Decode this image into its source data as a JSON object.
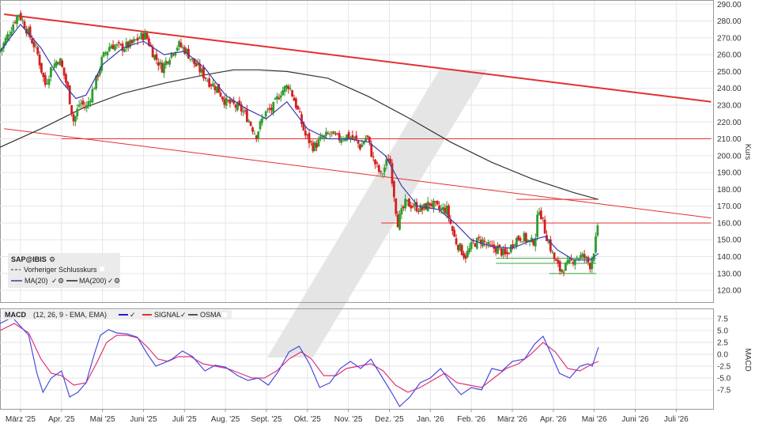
{
  "price_panel": {
    "y_axis_label": "Kurs",
    "legend": {
      "symbol": "SAP@IBIS",
      "prev_close_label": "Vorheriger Schlusskurs",
      "ma20_label": "MA(20)",
      "ma200_label": "MA(200)"
    }
  },
  "macd_panel": {
    "y_axis_label": "MACD",
    "legend": {
      "title": "MACD",
      "params": "(12, 26, 9 - EMA, EMA)",
      "signal_label": "SIGNAL",
      "osma_label": "OSMA"
    }
  },
  "colors": {
    "candle_up": "#2e9e2e",
    "candle_down": "#d42020",
    "ma20": "#3a3ab0",
    "ma200": "#333333",
    "trend_red": "#e23030",
    "support_green": "#3aa53a",
    "macd": "#4a4ae0",
    "signal": "#e0307a",
    "grid": "#e6e6e6",
    "watermark": "#e4e4e4"
  },
  "chart_data": [
    {
      "type": "candlestick",
      "title": "",
      "ylabel": "Kurs",
      "ylim": [
        113,
        292
      ],
      "y_ticks": [
        "120.00",
        "130.00",
        "140.00",
        "150.00",
        "160.00",
        "170.00",
        "180.00",
        "190.00",
        "200.00",
        "210.00",
        "220.00",
        "230.00",
        "240.00",
        "250.00",
        "260.00",
        "270.00",
        "280.00",
        "290.00"
      ],
      "y_tick_values": [
        120,
        130,
        140,
        150,
        160,
        170,
        180,
        190,
        200,
        210,
        220,
        230,
        240,
        250,
        260,
        270,
        280,
        290
      ],
      "x_ticks": [
        "März '25",
        "Apr. '25",
        "Mai '25",
        "Juni '25",
        "Juli '25",
        "Aug. '25",
        "Sept. '25",
        "Okt. '25",
        "Nov. '25",
        "Dez. '25",
        "Jan. '26",
        "Feb. '26",
        "März '26",
        "Apr. '26",
        "Mai '26",
        "Juni '26",
        "Juli '26"
      ],
      "x_tick_months": [
        2,
        3,
        4,
        5,
        6,
        7,
        8,
        9,
        10,
        11,
        12,
        13,
        14,
        15,
        16,
        17,
        18
      ],
      "x_range_months": [
        1.5,
        18.9
      ],
      "grid": true,
      "close_anchors": [
        [
          1.5,
          262
        ],
        [
          1.7,
          272
        ],
        [
          1.95,
          285
        ],
        [
          2.15,
          275
        ],
        [
          2.4,
          262
        ],
        [
          2.6,
          242
        ],
        [
          2.75,
          252
        ],
        [
          2.95,
          258
        ],
        [
          3.15,
          240
        ],
        [
          3.3,
          220
        ],
        [
          3.45,
          232
        ],
        [
          3.6,
          228
        ],
        [
          3.85,
          245
        ],
        [
          4.0,
          258
        ],
        [
          4.2,
          266
        ],
        [
          4.45,
          264
        ],
        [
          4.7,
          266
        ],
        [
          4.9,
          270
        ],
        [
          5.05,
          272
        ],
        [
          5.25,
          260
        ],
        [
          5.45,
          252
        ],
        [
          5.65,
          260
        ],
        [
          5.85,
          266
        ],
        [
          6.05,
          262
        ],
        [
          6.2,
          256
        ],
        [
          6.4,
          250
        ],
        [
          6.6,
          244
        ],
        [
          6.8,
          240
        ],
        [
          7.0,
          232
        ],
        [
          7.2,
          230
        ],
        [
          7.4,
          227
        ],
        [
          7.55,
          222
        ],
        [
          7.75,
          212
        ],
        [
          7.95,
          225
        ],
        [
          8.15,
          228
        ],
        [
          8.35,
          238
        ],
        [
          8.55,
          242
        ],
        [
          8.75,
          228
        ],
        [
          8.95,
          212
        ],
        [
          9.15,
          205
        ],
        [
          9.35,
          210
        ],
        [
          9.55,
          213
        ],
        [
          9.75,
          210
        ],
        [
          9.95,
          212
        ],
        [
          10.15,
          210
        ],
        [
          10.3,
          205
        ],
        [
          10.45,
          212
        ],
        [
          10.6,
          198
        ],
        [
          10.8,
          188
        ],
        [
          11.0,
          200
        ],
        [
          11.2,
          160
        ],
        [
          11.4,
          172
        ],
        [
          11.6,
          170
        ],
        [
          11.8,
          168
        ],
        [
          12.0,
          172
        ],
        [
          12.2,
          168
        ],
        [
          12.4,
          168
        ],
        [
          12.6,
          150
        ],
        [
          12.85,
          140
        ],
        [
          13.05,
          148
        ],
        [
          13.25,
          150
        ],
        [
          13.45,
          145
        ],
        [
          13.65,
          145
        ],
        [
          13.85,
          140
        ],
        [
          14.05,
          150
        ],
        [
          14.25,
          152
        ],
        [
          14.45,
          148
        ],
        [
          14.55,
          150
        ],
        [
          14.65,
          170
        ],
        [
          14.8,
          155
        ],
        [
          15.0,
          140
        ],
        [
          15.15,
          132
        ],
        [
          15.35,
          135
        ],
        [
          15.55,
          140
        ],
        [
          15.75,
          140
        ],
        [
          15.9,
          135
        ],
        [
          16.0,
          145
        ],
        [
          16.1,
          158
        ]
      ],
      "series": [
        {
          "name": "MA(20)",
          "values": [
            [
              1.5,
              262
            ],
            [
              2.0,
              278
            ],
            [
              2.5,
              264
            ],
            [
              3.0,
              244
            ],
            [
              3.35,
              234
            ],
            [
              3.6,
              236
            ],
            [
              4.0,
              254
            ],
            [
              4.5,
              264
            ],
            [
              5.0,
              268
            ],
            [
              5.5,
              260
            ],
            [
              6.0,
              262
            ],
            [
              6.5,
              252
            ],
            [
              7.0,
              236
            ],
            [
              7.5,
              228
            ],
            [
              8.0,
              222
            ],
            [
              8.5,
              232
            ],
            [
              9.0,
              216
            ],
            [
              9.5,
              210
            ],
            [
              10.0,
              210
            ],
            [
              10.5,
              208
            ],
            [
              10.9,
              200
            ],
            [
              11.3,
              182
            ],
            [
              11.7,
              170
            ],
            [
              12.2,
              168
            ],
            [
              12.6,
              160
            ],
            [
              13.0,
              150
            ],
            [
              13.5,
              146
            ],
            [
              14.0,
              145
            ],
            [
              14.5,
              150
            ],
            [
              14.8,
              152
            ],
            [
              15.1,
              144
            ],
            [
              15.5,
              138
            ],
            [
              15.9,
              138
            ],
            [
              16.1,
              142
            ]
          ]
        },
        {
          "name": "MA(200)",
          "values": [
            [
              1.5,
              205
            ],
            [
              2.5,
              216
            ],
            [
              3.5,
              228
            ],
            [
              4.5,
              237
            ],
            [
              5.5,
              243
            ],
            [
              6.5,
              248
            ],
            [
              7.2,
              251
            ],
            [
              7.8,
              251
            ],
            [
              8.5,
              250
            ],
            [
              9.5,
              246
            ],
            [
              10.5,
              235
            ],
            [
              11.5,
              222
            ],
            [
              12.5,
              208
            ],
            [
              13.5,
              196
            ],
            [
              14.5,
              186
            ],
            [
              15.5,
              178
            ],
            [
              16.1,
              174
            ]
          ]
        }
      ],
      "trend_lines": [
        {
          "from": [
            1.6,
            284
          ],
          "to": [
            18.85,
            232
          ],
          "color": "trend_red",
          "width": 2
        },
        {
          "from": [
            1.6,
            216
          ],
          "to": [
            18.85,
            163
          ],
          "color": "trend_red",
          "width": 1
        },
        {
          "from": [
            3.0,
            210
          ],
          "to": [
            18.85,
            210
          ],
          "color": "trend_red",
          "width": 1
        },
        {
          "from": [
            10.8,
            160
          ],
          "to": [
            18.85,
            160
          ],
          "color": "trend_red",
          "width": 1
        },
        {
          "from": [
            14.1,
            174
          ],
          "to": [
            16.05,
            174
          ],
          "color": "trend_red",
          "width": 1
        },
        {
          "from": [
            13.6,
            136
          ],
          "to": [
            16.05,
            136
          ],
          "color": "support_green",
          "width": 1
        },
        {
          "from": [
            13.6,
            139
          ],
          "to": [
            16.05,
            139
          ],
          "color": "support_green",
          "width": 1
        },
        {
          "from": [
            14.9,
            130
          ],
          "to": [
            16.05,
            130
          ],
          "color": "support_green",
          "width": 1
        }
      ]
    },
    {
      "type": "line",
      "title": "",
      "ylabel": "MACD",
      "ylim": [
        -11.5,
        9.5
      ],
      "y_ticks": [
        "7.5",
        "5.0",
        "2.5",
        "0.0",
        "-2.5",
        "-5.0",
        "-7.5"
      ],
      "y_tick_values": [
        7.5,
        5.0,
        2.5,
        0.0,
        -2.5,
        -5.0,
        -7.5
      ],
      "grid": true,
      "series": [
        {
          "name": "MACD",
          "values": [
            [
              1.5,
              6.5
            ],
            [
              1.8,
              7.8
            ],
            [
              2.2,
              4
            ],
            [
              2.4,
              -4
            ],
            [
              2.55,
              -8
            ],
            [
              2.75,
              -5
            ],
            [
              3.0,
              -3.5
            ],
            [
              3.2,
              -9
            ],
            [
              3.4,
              -8
            ],
            [
              3.6,
              -6
            ],
            [
              3.8,
              0
            ],
            [
              3.95,
              4
            ],
            [
              4.15,
              5.2
            ],
            [
              4.35,
              4.5
            ],
            [
              4.6,
              4.3
            ],
            [
              4.85,
              3.6
            ],
            [
              5.1,
              0
            ],
            [
              5.3,
              -2.5
            ],
            [
              5.5,
              -1.8
            ],
            [
              5.7,
              -1
            ],
            [
              5.95,
              0.7
            ],
            [
              6.2,
              -0.5
            ],
            [
              6.5,
              -3.5
            ],
            [
              6.75,
              -2.3
            ],
            [
              7.0,
              -2.7
            ],
            [
              7.3,
              -4.5
            ],
            [
              7.55,
              -5.5
            ],
            [
              7.8,
              -5
            ],
            [
              8.05,
              -6.5
            ],
            [
              8.3,
              -3.5
            ],
            [
              8.55,
              0.5
            ],
            [
              8.8,
              1.7
            ],
            [
              9.05,
              -2
            ],
            [
              9.3,
              -7
            ],
            [
              9.55,
              -6
            ],
            [
              9.8,
              -3
            ],
            [
              10.05,
              -1.5
            ],
            [
              10.3,
              -3
            ],
            [
              10.55,
              -1
            ],
            [
              10.8,
              -4.5
            ],
            [
              11.05,
              -8
            ],
            [
              11.25,
              -11
            ],
            [
              11.5,
              -9
            ],
            [
              11.75,
              -6
            ],
            [
              12.0,
              -5
            ],
            [
              12.25,
              -3
            ],
            [
              12.5,
              -6
            ],
            [
              12.75,
              -8.5
            ],
            [
              13.0,
              -7
            ],
            [
              13.25,
              -7.5
            ],
            [
              13.5,
              -3
            ],
            [
              13.75,
              -3.5
            ],
            [
              14.0,
              -1.5
            ],
            [
              14.3,
              -1
            ],
            [
              14.55,
              2.2
            ],
            [
              14.75,
              3.8
            ],
            [
              14.95,
              0
            ],
            [
              15.15,
              -4
            ],
            [
              15.4,
              -5
            ],
            [
              15.65,
              -2.5
            ],
            [
              15.85,
              -2
            ],
            [
              15.95,
              -2.5
            ],
            [
              16.1,
              1.5
            ]
          ]
        },
        {
          "name": "SIGNAL",
          "values": [
            [
              1.5,
              5
            ],
            [
              1.85,
              6.5
            ],
            [
              2.2,
              4.5
            ],
            [
              2.5,
              -1
            ],
            [
              2.75,
              -4
            ],
            [
              3.0,
              -4.5
            ],
            [
              3.3,
              -6.5
            ],
            [
              3.6,
              -6
            ],
            [
              3.85,
              -2
            ],
            [
              4.1,
              2.5
            ],
            [
              4.35,
              4
            ],
            [
              4.6,
              4
            ],
            [
              4.85,
              3.5
            ],
            [
              5.1,
              1.5
            ],
            [
              5.35,
              -1
            ],
            [
              5.6,
              -1.5
            ],
            [
              5.85,
              -0.5
            ],
            [
              6.15,
              -0.5
            ],
            [
              6.45,
              -2
            ],
            [
              6.75,
              -2.5
            ],
            [
              7.05,
              -3
            ],
            [
              7.35,
              -4
            ],
            [
              7.65,
              -5
            ],
            [
              7.95,
              -5
            ],
            [
              8.25,
              -3.5
            ],
            [
              8.55,
              -1
            ],
            [
              8.85,
              0.5
            ],
            [
              9.1,
              -1
            ],
            [
              9.4,
              -4.5
            ],
            [
              9.7,
              -4.5
            ],
            [
              9.95,
              -3
            ],
            [
              10.25,
              -2.5
            ],
            [
              10.55,
              -2
            ],
            [
              10.85,
              -3.5
            ],
            [
              11.15,
              -6.5
            ],
            [
              11.45,
              -8
            ],
            [
              11.75,
              -7
            ],
            [
              12.05,
              -5.5
            ],
            [
              12.35,
              -4
            ],
            [
              12.65,
              -6
            ],
            [
              12.95,
              -6.5
            ],
            [
              13.25,
              -7
            ],
            [
              13.55,
              -5
            ],
            [
              13.85,
              -3
            ],
            [
              14.15,
              -2
            ],
            [
              14.45,
              0
            ],
            [
              14.75,
              2.5
            ],
            [
              15.05,
              0.5
            ],
            [
              15.35,
              -3
            ],
            [
              15.65,
              -3.5
            ],
            [
              15.95,
              -2
            ],
            [
              16.1,
              -1.5
            ]
          ]
        }
      ]
    }
  ]
}
